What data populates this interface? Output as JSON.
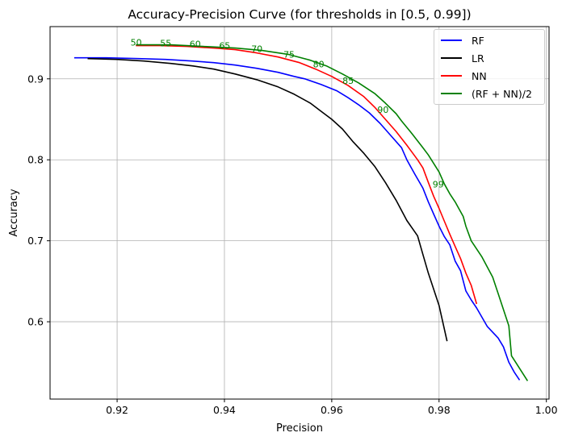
{
  "chart_data": {
    "type": "line",
    "title": "Accuracy-Precision Curve (for thresholds in [0.5, 0.99])",
    "xlabel": "Precision",
    "ylabel": "Accuracy",
    "xlim": [
      0.9075,
      1.0005
    ],
    "ylim": [
      0.5045,
      0.9645
    ],
    "xticks": [
      "0.92",
      "0.94",
      "0.96",
      "0.98",
      "1.00"
    ],
    "yticks": [
      "0.6",
      "0.7",
      "0.8",
      "0.9"
    ],
    "grid": true,
    "legend_position": "upper right",
    "series": [
      {
        "name": "RF",
        "color": "#0000ff",
        "points": [
          [
            0.912,
            0.926
          ],
          [
            0.918,
            0.926
          ],
          [
            0.924,
            0.925
          ],
          [
            0.929,
            0.924
          ],
          [
            0.934,
            0.922
          ],
          [
            0.938,
            0.92
          ],
          [
            0.942,
            0.917
          ],
          [
            0.946,
            0.913
          ],
          [
            0.95,
            0.908
          ],
          [
            0.953,
            0.903
          ],
          [
            0.955,
            0.9
          ],
          [
            0.958,
            0.893
          ],
          [
            0.961,
            0.885
          ],
          [
            0.963,
            0.877
          ],
          [
            0.965,
            0.868
          ],
          [
            0.967,
            0.858
          ],
          [
            0.969,
            0.845
          ],
          [
            0.971,
            0.83
          ],
          [
            0.973,
            0.815
          ],
          [
            0.974,
            0.8
          ],
          [
            0.9755,
            0.782
          ],
          [
            0.977,
            0.765
          ],
          [
            0.978,
            0.748
          ],
          [
            0.979,
            0.733
          ],
          [
            0.98,
            0.718
          ],
          [
            0.981,
            0.705
          ],
          [
            0.982,
            0.695
          ],
          [
            0.983,
            0.675
          ],
          [
            0.984,
            0.663
          ],
          [
            0.985,
            0.638
          ],
          [
            0.986,
            0.627
          ],
          [
            0.987,
            0.617
          ],
          [
            0.989,
            0.594
          ],
          [
            0.991,
            0.58
          ],
          [
            0.992,
            0.569
          ],
          [
            0.993,
            0.55
          ],
          [
            0.994,
            0.538
          ],
          [
            0.995,
            0.528
          ]
        ]
      },
      {
        "name": "LR",
        "color": "#000000",
        "points": [
          [
            0.9145,
            0.925
          ],
          [
            0.92,
            0.924
          ],
          [
            0.925,
            0.922
          ],
          [
            0.93,
            0.919
          ],
          [
            0.934,
            0.916
          ],
          [
            0.938,
            0.912
          ],
          [
            0.942,
            0.906
          ],
          [
            0.946,
            0.899
          ],
          [
            0.95,
            0.89
          ],
          [
            0.953,
            0.881
          ],
          [
            0.956,
            0.87
          ],
          [
            0.958,
            0.86
          ],
          [
            0.96,
            0.85
          ],
          [
            0.962,
            0.838
          ],
          [
            0.964,
            0.822
          ],
          [
            0.966,
            0.808
          ],
          [
            0.968,
            0.792
          ],
          [
            0.97,
            0.772
          ],
          [
            0.972,
            0.75
          ],
          [
            0.974,
            0.725
          ],
          [
            0.976,
            0.706
          ],
          [
            0.977,
            0.683
          ],
          [
            0.978,
            0.66
          ],
          [
            0.98,
            0.62
          ],
          [
            0.9815,
            0.576
          ]
        ]
      },
      {
        "name": "NN",
        "color": "#ff0000",
        "points": [
          [
            0.9235,
            0.941
          ],
          [
            0.928,
            0.941
          ],
          [
            0.933,
            0.94
          ],
          [
            0.938,
            0.938
          ],
          [
            0.942,
            0.936
          ],
          [
            0.946,
            0.932
          ],
          [
            0.95,
            0.927
          ],
          [
            0.954,
            0.92
          ],
          [
            0.957,
            0.912
          ],
          [
            0.96,
            0.903
          ],
          [
            0.963,
            0.892
          ],
          [
            0.966,
            0.878
          ],
          [
            0.968,
            0.865
          ],
          [
            0.97,
            0.85
          ],
          [
            0.972,
            0.835
          ],
          [
            0.974,
            0.818
          ],
          [
            0.976,
            0.8
          ],
          [
            0.977,
            0.79
          ],
          [
            0.978,
            0.772
          ],
          [
            0.979,
            0.755
          ],
          [
            0.98,
            0.74
          ],
          [
            0.981,
            0.724
          ],
          [
            0.982,
            0.708
          ],
          [
            0.983,
            0.693
          ],
          [
            0.984,
            0.678
          ],
          [
            0.985,
            0.66
          ],
          [
            0.986,
            0.645
          ],
          [
            0.987,
            0.622
          ]
        ]
      },
      {
        "name": "(RF + NN)/2",
        "color": "#008000",
        "points": [
          [
            0.9235,
            0.942
          ],
          [
            0.93,
            0.942
          ],
          [
            0.936,
            0.94
          ],
          [
            0.942,
            0.938
          ],
          [
            0.947,
            0.935
          ],
          [
            0.952,
            0.93
          ],
          [
            0.956,
            0.923
          ],
          [
            0.959,
            0.916
          ],
          [
            0.962,
            0.906
          ],
          [
            0.965,
            0.895
          ],
          [
            0.968,
            0.882
          ],
          [
            0.97,
            0.87
          ],
          [
            0.972,
            0.857
          ],
          [
            0.973,
            0.848
          ],
          [
            0.975,
            0.832
          ],
          [
            0.977,
            0.815
          ],
          [
            0.978,
            0.806
          ],
          [
            0.98,
            0.785
          ],
          [
            0.981,
            0.77
          ],
          [
            0.982,
            0.758
          ],
          [
            0.983,
            0.748
          ],
          [
            0.9845,
            0.73
          ],
          [
            0.985,
            0.718
          ],
          [
            0.986,
            0.7
          ],
          [
            0.988,
            0.68
          ],
          [
            0.99,
            0.655
          ],
          [
            0.991,
            0.635
          ],
          [
            0.993,
            0.595
          ],
          [
            0.9935,
            0.558
          ],
          [
            0.9965,
            0.527
          ]
        ]
      }
    ],
    "annotations": [
      {
        "text": "50",
        "x": 0.9225,
        "y": 0.941
      },
      {
        "text": "55",
        "x": 0.928,
        "y": 0.94
      },
      {
        "text": "60",
        "x": 0.9335,
        "y": 0.939
      },
      {
        "text": "65",
        "x": 0.939,
        "y": 0.937
      },
      {
        "text": "70",
        "x": 0.945,
        "y": 0.933
      },
      {
        "text": "75",
        "x": 0.951,
        "y": 0.926
      },
      {
        "text": "80",
        "x": 0.9565,
        "y": 0.914
      },
      {
        "text": "85",
        "x": 0.962,
        "y": 0.894
      },
      {
        "text": "90",
        "x": 0.9685,
        "y": 0.858
      },
      {
        "text": "99",
        "x": 0.9788,
        "y": 0.766
      }
    ],
    "annotation_color": "#008000"
  }
}
